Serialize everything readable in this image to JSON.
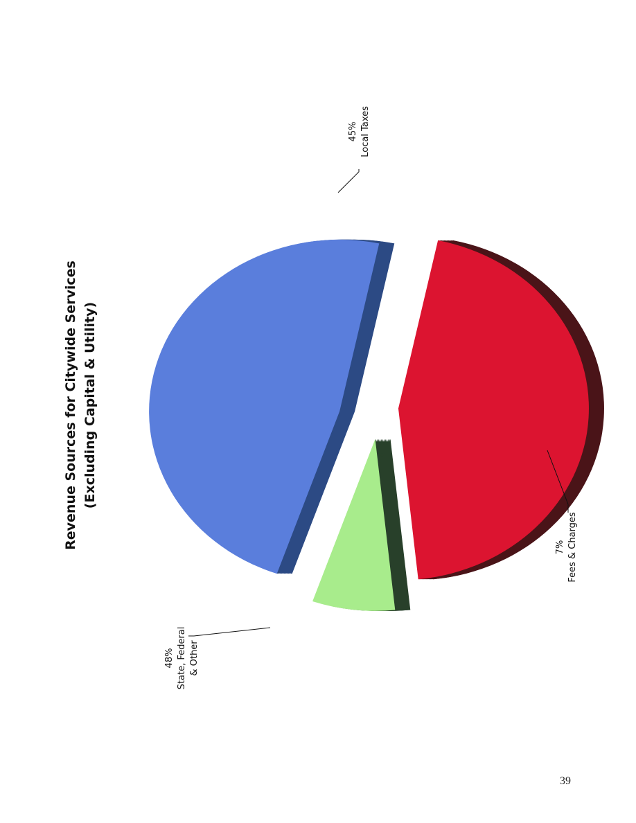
{
  "page_number": "39",
  "chart_data": {
    "type": "pie",
    "title": [
      "Revenue Sources for Citywide Services",
      "(Excluding Capital & Utility)"
    ],
    "slices": [
      {
        "name_lines": [
          "Local Taxes"
        ],
        "percent_label": "45%",
        "value": 45,
        "color": "#dc1430",
        "side_color": "#4a1418"
      },
      {
        "name_lines": [
          "Fees & Charges"
        ],
        "percent_label": "7%",
        "value": 7,
        "color": "#a8ec8c",
        "side_color": "#28402a"
      },
      {
        "name_lines": [
          "State, Federal",
          "& Other"
        ],
        "percent_label": "48%",
        "value": 48,
        "color": "#5a7edc",
        "side_color": "#2c4a84"
      }
    ],
    "three_d": true,
    "exploded": true,
    "page_rotation": "rotated 90 degrees counter-clockwise"
  }
}
